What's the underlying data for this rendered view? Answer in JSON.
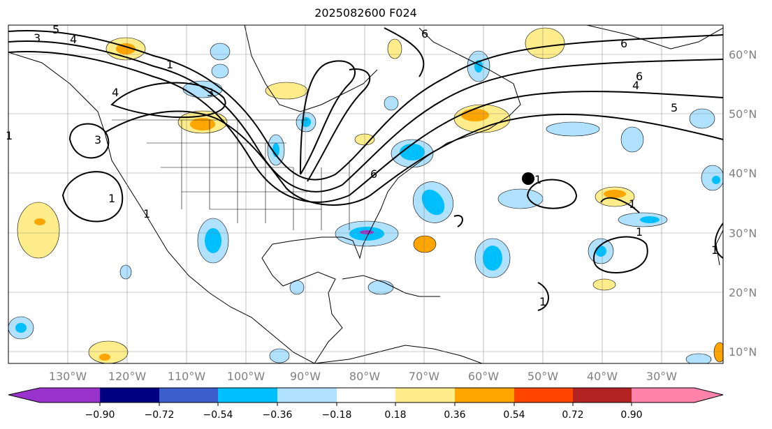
{
  "title": "2025082600 F024",
  "map": {
    "lon_labels": [
      "130°W",
      "120°W",
      "110°W",
      "100°W",
      "90°W",
      "80°W",
      "70°W",
      "60°W",
      "50°W",
      "40°W",
      "30°W"
    ],
    "lat_labels": [
      "60°N",
      "50°N",
      "40°N",
      "30°N",
      "20°N",
      "10°N"
    ],
    "contour_labels": [
      "3",
      "5",
      "4",
      "1",
      "4",
      "3",
      "1",
      "3",
      "1",
      "6",
      "6",
      "1",
      "6",
      "5",
      "4",
      "6",
      "1",
      "1",
      "1",
      "1",
      "1"
    ],
    "marker": "black-dot"
  },
  "colorbar": {
    "ticks": [
      "−0.90",
      "−0.72",
      "−0.54",
      "−0.36",
      "−0.18",
      "0.18",
      "0.36",
      "0.54",
      "0.72",
      "0.90"
    ],
    "colors": [
      "#9933cc",
      "#000080",
      "#3a5fcd",
      "#00bfff",
      "#b0e2ff",
      "#ffffff",
      "#ffec8b",
      "#ffa500",
      "#ff4500",
      "#b22222",
      "#ff82ab"
    ]
  }
}
